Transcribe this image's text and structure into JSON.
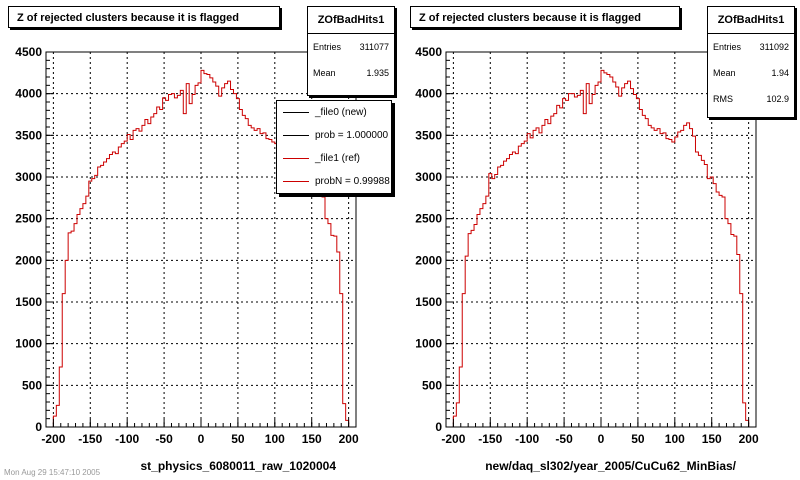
{
  "pads": [
    {
      "title": "Z of rejected clusters  because it is flagged",
      "xlabel": "st_physics_6080011_raw_1020004",
      "stats": {
        "name": "ZOfBadHits1",
        "rows": [
          {
            "label": "Entries",
            "value": "311077"
          },
          {
            "label": "Mean",
            "value": "1.935"
          }
        ]
      },
      "legend": {
        "entries": [
          {
            "label": "_file0 (new)",
            "color": "#000000"
          },
          {
            "label": "prob = 1.000000",
            "color": "#000000"
          },
          {
            "label": "_file1 (ref)",
            "color": "#cc0000"
          },
          {
            "label": "probN = 0.99988",
            "color": "#cc0000"
          }
        ]
      }
    },
    {
      "title": "Z of rejected clusters  because it is flagged",
      "xlabel": "new/daq_sl302/year_2005/CuCu62_MinBias/",
      "stats": {
        "name": "ZOfBadHits1",
        "rows": [
          {
            "label": "Entries",
            "value": "311092"
          },
          {
            "label": "Mean",
            "value": "1.94"
          },
          {
            "label": "RMS",
            "value": "102.9"
          }
        ]
      }
    }
  ],
  "footer": "Mon Aug 29 15:47:10 2005",
  "colors": {
    "hist": "#cc0000",
    "axis": "#000000",
    "grid": "#000000"
  },
  "chart_data": [
    {
      "type": "bar",
      "title": "Z of rejected clusters  because it is flagged",
      "xlabel": "st_physics_6080011_raw_1020004",
      "ylabel": "",
      "xlim": [
        -210,
        210
      ],
      "ylim": [
        0,
        4500
      ],
      "xticks": [
        -200,
        -150,
        -100,
        -50,
        0,
        50,
        100,
        150,
        200
      ],
      "yticks": [
        0,
        500,
        1000,
        1500,
        2000,
        2500,
        3000,
        3500,
        4000,
        4500
      ],
      "grid": true,
      "bin_width": 4,
      "x": [
        -200,
        -196,
        -192,
        -188,
        -184,
        -180,
        -176,
        -172,
        -168,
        -164,
        -160,
        -156,
        -152,
        -148,
        -144,
        -140,
        -136,
        -132,
        -128,
        -124,
        -120,
        -116,
        -112,
        -108,
        -104,
        -100,
        -96,
        -92,
        -88,
        -84,
        -80,
        -76,
        -72,
        -68,
        -64,
        -60,
        -56,
        -52,
        -48,
        -44,
        -40,
        -36,
        -32,
        -28,
        -24,
        -20,
        -16,
        -12,
        -8,
        -4,
        0,
        4,
        8,
        12,
        16,
        20,
        24,
        28,
        32,
        36,
        40,
        44,
        48,
        52,
        56,
        60,
        64,
        68,
        72,
        76,
        80,
        84,
        88,
        92,
        96,
        100,
        104,
        108,
        112,
        116,
        120,
        124,
        128,
        132,
        136,
        140,
        144,
        148,
        152,
        156,
        160,
        164,
        168,
        172,
        176,
        180,
        184,
        188,
        192,
        196
      ],
      "series": [
        {
          "name": "_file1 (ref)",
          "values": [
            130,
            260,
            720,
            1600,
            2000,
            2330,
            2350,
            2440,
            2550,
            2620,
            2680,
            2770,
            2950,
            2980,
            3020,
            3120,
            3140,
            3180,
            3220,
            3270,
            3300,
            3280,
            3360,
            3400,
            3430,
            3510,
            3450,
            3560,
            3580,
            3550,
            3620,
            3690,
            3640,
            3720,
            3760,
            3840,
            3810,
            3950,
            3920,
            3990,
            4000,
            3950,
            3980,
            4040,
            3760,
            4120,
            3880,
            3990,
            4100,
            4130,
            4280,
            4240,
            4230,
            4190,
            4140,
            4090,
            3970,
            4070,
            4120,
            4150,
            4050,
            4000,
            3940,
            3810,
            3740,
            3700,
            3620,
            3590,
            3560,
            3580,
            3520,
            3530,
            3460,
            3450,
            3420,
            3400,
            3380,
            3370,
            3320,
            3360,
            3330,
            3290,
            3300,
            3250,
            3200,
            3150,
            3100,
            3000,
            2920,
            2820,
            2780,
            2760,
            2500,
            2440,
            2300,
            2290,
            2100,
            1600,
            280,
            80
          ]
        }
      ]
    },
    {
      "type": "bar",
      "title": "Z of rejected clusters  because it is flagged",
      "xlabel": "new/daq_sl302/year_2005/CuCu62_MinBias/",
      "ylabel": "",
      "xlim": [
        -210,
        210
      ],
      "ylim": [
        0,
        4500
      ],
      "xticks": [
        -200,
        -150,
        -100,
        -50,
        0,
        50,
        100,
        150,
        200
      ],
      "yticks": [
        0,
        500,
        1000,
        1500,
        2000,
        2500,
        3000,
        3500,
        4000,
        4500
      ],
      "grid": true,
      "bin_width": 4,
      "x": [
        -200,
        -196,
        -192,
        -188,
        -184,
        -180,
        -176,
        -172,
        -168,
        -164,
        -160,
        -156,
        -152,
        -148,
        -144,
        -140,
        -136,
        -132,
        -128,
        -124,
        -120,
        -116,
        -112,
        -108,
        -104,
        -100,
        -96,
        -92,
        -88,
        -84,
        -80,
        -76,
        -72,
        -68,
        -64,
        -60,
        -56,
        -52,
        -48,
        -44,
        -40,
        -36,
        -32,
        -28,
        -24,
        -20,
        -16,
        -12,
        -8,
        -4,
        0,
        4,
        8,
        12,
        16,
        20,
        24,
        28,
        32,
        36,
        40,
        44,
        48,
        52,
        56,
        60,
        64,
        68,
        72,
        76,
        80,
        84,
        88,
        92,
        96,
        100,
        104,
        108,
        112,
        116,
        120,
        124,
        128,
        132,
        136,
        140,
        144,
        148,
        152,
        156,
        160,
        164,
        168,
        172,
        176,
        180,
        184,
        188,
        192,
        196
      ],
      "series": [
        {
          "name": "",
          "values": [
            130,
            290,
            720,
            1600,
            2050,
            2320,
            2360,
            2430,
            2550,
            2620,
            2680,
            2770,
            3040,
            2980,
            3030,
            3120,
            3140,
            3190,
            3220,
            3270,
            3300,
            3280,
            3370,
            3400,
            3430,
            3520,
            3470,
            3560,
            3590,
            3530,
            3620,
            3690,
            3640,
            3730,
            3760,
            3860,
            3830,
            3940,
            3920,
            4000,
            4000,
            3960,
            3980,
            4040,
            3760,
            4120,
            3880,
            3990,
            4100,
            4140,
            4280,
            4250,
            4230,
            4200,
            4140,
            4080,
            3970,
            4070,
            4120,
            4150,
            4060,
            3990,
            3940,
            3810,
            3740,
            3700,
            3620,
            3590,
            3560,
            3580,
            3520,
            3530,
            3460,
            3450,
            3420,
            3480,
            3540,
            3560,
            3620,
            3650,
            3580,
            3490,
            3300,
            3260,
            3200,
            3150,
            2980,
            3000,
            2920,
            2820,
            2780,
            2760,
            2500,
            2440,
            2310,
            2290,
            2070,
            1600,
            290,
            80
          ]
        }
      ]
    }
  ]
}
